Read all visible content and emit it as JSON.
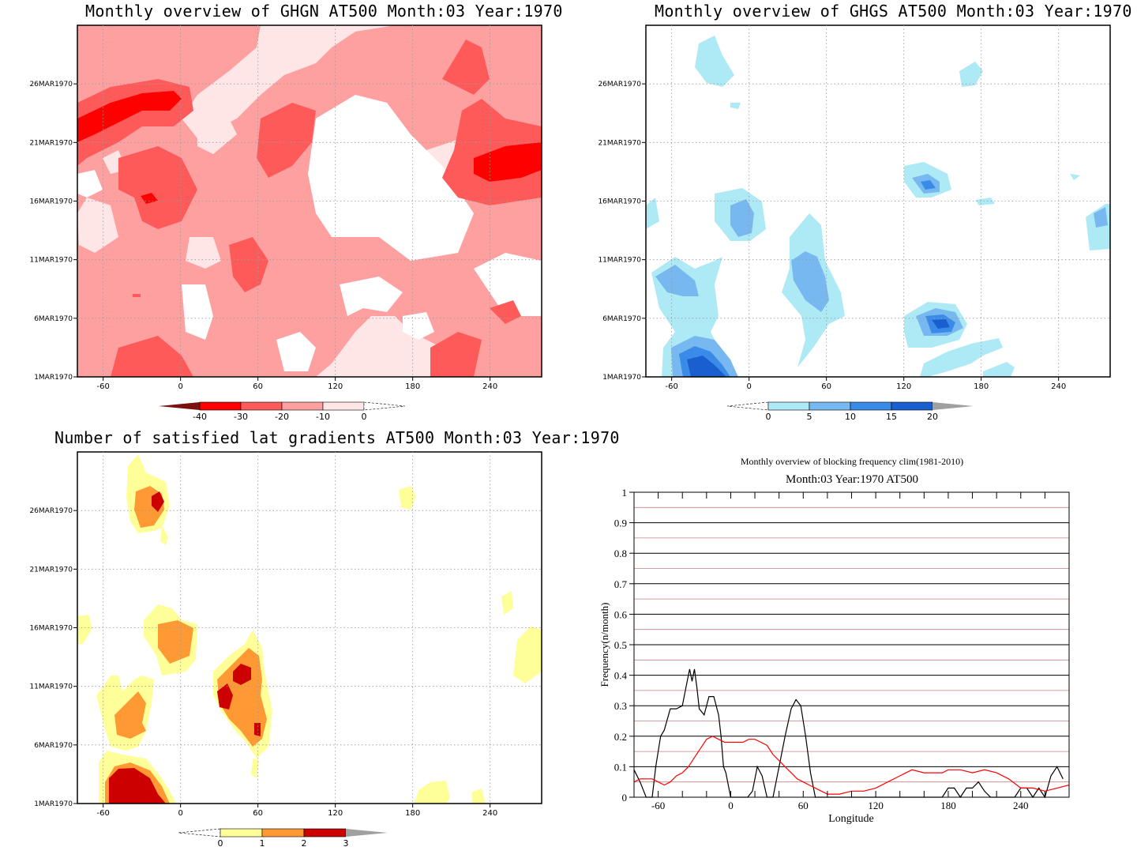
{
  "chart_data": [
    {
      "type": "heatmap",
      "title": "Monthly overview of GHGN AT500 Month:03 Year:1970",
      "x_ticks": [
        "-60",
        "0",
        "60",
        "120",
        "180",
        "240"
      ],
      "x_tick_values": [
        -60,
        0,
        60,
        120,
        180,
        240
      ],
      "xlim": [
        -80,
        280
      ],
      "y_ticks": [
        "1MAR1970",
        "6MAR1970",
        "11MAR1970",
        "16MAR1970",
        "21MAR1970",
        "26MAR1970"
      ],
      "y_tick_values": [
        1,
        6,
        11,
        16,
        21,
        26
      ],
      "ylim": [
        1,
        31
      ],
      "colorbar": {
        "labels": [
          "-40",
          "-30",
          "-20",
          "-10",
          "0"
        ],
        "colors": [
          "#7a1010",
          "#ff0000",
          "#ff5a5a",
          "#ffa0a0",
          "#ffe6e6"
        ]
      },
      "fill_colors": {
        "neutral": "#ffffff",
        "light": "#ffe6e6",
        "mid": "#ffa0a0",
        "strong": "#ff5a5a",
        "extreme": "#ff0000"
      }
    },
    {
      "type": "heatmap",
      "title": "Monthly overview of GHGS AT500 Month:03 Year:1970",
      "x_ticks": [
        "-60",
        "0",
        "60",
        "120",
        "180",
        "240"
      ],
      "x_tick_values": [
        -60,
        0,
        60,
        120,
        180,
        240
      ],
      "xlim": [
        -80,
        280
      ],
      "y_ticks": [
        "1MAR1970",
        "6MAR1970",
        "11MAR1970",
        "16MAR1970",
        "21MAR1970",
        "26MAR1970"
      ],
      "y_tick_values": [
        1,
        6,
        11,
        16,
        21,
        26
      ],
      "ylim": [
        1,
        31
      ],
      "colorbar": {
        "labels": [
          "0",
          "5",
          "10",
          "15",
          "20"
        ],
        "colors": [
          "#aeeaf5",
          "#78b8f0",
          "#3a8be8",
          "#1a5fd0",
          "#a0a0a0"
        ]
      },
      "fill_colors": {
        "light": "#aeeaf5",
        "mid": "#78b8f0",
        "strong": "#3a8be8",
        "extreme": "#1a5fd0"
      }
    },
    {
      "type": "heatmap",
      "title": "Number of satisfied lat gradients AT500 Month:03 Year:1970",
      "x_ticks": [
        "-60",
        "0",
        "60",
        "120",
        "180",
        "240"
      ],
      "x_tick_values": [
        -60,
        0,
        60,
        120,
        180,
        240
      ],
      "xlim": [
        -80,
        280
      ],
      "y_ticks": [
        "1MAR1970",
        "6MAR1970",
        "11MAR1970",
        "16MAR1970",
        "21MAR1970",
        "26MAR1970"
      ],
      "y_tick_values": [
        1,
        6,
        11,
        16,
        21,
        26
      ],
      "ylim": [
        1,
        31
      ],
      "colorbar": {
        "labels": [
          "0",
          "1",
          "2",
          "3"
        ],
        "colors": [
          "#ffff99",
          "#ff9933",
          "#cc0000",
          "#a0a0a0"
        ]
      },
      "fill_colors": {
        "one": "#ffff99",
        "two": "#ff9933",
        "three": "#cc0000"
      }
    },
    {
      "type": "line",
      "title": "Monthly overview of blocking frequency clim(1981-2010)",
      "subtitle": "Month:03 Year:1970  AT500",
      "xlabel": "Longitude",
      "ylabel": "Frequency(n/month)",
      "x_ticks": [
        "-60",
        "0",
        "60",
        "120",
        "180",
        "240"
      ],
      "x_tick_values": [
        -60,
        0,
        60,
        120,
        180,
        240
      ],
      "xlim": [
        -80,
        280
      ],
      "y_ticks": [
        "0",
        "0.1",
        "0.2",
        "0.3",
        "0.4",
        "0.5",
        "0.6",
        "0.7",
        "0.8",
        "0.9",
        "1"
      ],
      "ylim": [
        0,
        1
      ],
      "grid": true,
      "series": [
        {
          "color": "#000000",
          "x": [
            -80,
            -75,
            -70,
            -65,
            -62,
            -58,
            -55,
            -50,
            -45,
            -40,
            -36,
            -34,
            -32,
            -30,
            -28,
            -26,
            -22,
            -18,
            -14,
            -10,
            -8,
            -6,
            -4,
            0,
            5,
            10,
            14,
            18,
            22,
            26,
            30,
            35,
            40,
            45,
            50,
            54,
            58,
            62,
            66,
            70,
            80,
            100,
            120,
            140,
            160,
            170,
            175,
            180,
            185,
            190,
            195,
            200,
            205,
            210,
            215,
            220,
            225,
            235,
            240,
            245,
            250,
            255,
            260,
            265,
            270,
            275
          ],
          "y": [
            0.09,
            0.05,
            0.0,
            0.0,
            0.1,
            0.2,
            0.22,
            0.29,
            0.29,
            0.3,
            0.38,
            0.42,
            0.38,
            0.42,
            0.36,
            0.29,
            0.27,
            0.33,
            0.33,
            0.27,
            0.2,
            0.1,
            0.08,
            0.0,
            0.0,
            0.0,
            0.0,
            0.02,
            0.1,
            0.07,
            0.0,
            0.0,
            0.1,
            0.2,
            0.29,
            0.32,
            0.3,
            0.2,
            0.08,
            0.0,
            0.0,
            0.0,
            0.0,
            0.0,
            0.0,
            0.0,
            0.0,
            0.03,
            0.03,
            0.0,
            0.03,
            0.03,
            0.05,
            0.02,
            0.0,
            0.0,
            0.0,
            0.0,
            0.03,
            0.03,
            0.0,
            0.03,
            0.0,
            0.07,
            0.1,
            0.06
          ]
        },
        {
          "color": "#ff0000",
          "x": [
            -80,
            -75,
            -70,
            -65,
            -60,
            -55,
            -50,
            -45,
            -40,
            -35,
            -30,
            -25,
            -20,
            -15,
            -10,
            -5,
            0,
            5,
            10,
            15,
            20,
            25,
            30,
            35,
            40,
            45,
            50,
            55,
            60,
            65,
            70,
            75,
            80,
            90,
            100,
            110,
            120,
            130,
            140,
            150,
            160,
            170,
            175,
            180,
            190,
            200,
            210,
            220,
            230,
            240,
            250,
            260,
            270,
            280
          ],
          "y": [
            0.05,
            0.06,
            0.06,
            0.06,
            0.05,
            0.04,
            0.05,
            0.07,
            0.08,
            0.1,
            0.13,
            0.16,
            0.19,
            0.2,
            0.19,
            0.18,
            0.18,
            0.18,
            0.18,
            0.19,
            0.19,
            0.18,
            0.17,
            0.14,
            0.12,
            0.1,
            0.08,
            0.06,
            0.05,
            0.04,
            0.03,
            0.02,
            0.01,
            0.01,
            0.02,
            0.02,
            0.03,
            0.05,
            0.07,
            0.09,
            0.08,
            0.08,
            0.08,
            0.09,
            0.09,
            0.08,
            0.09,
            0.08,
            0.06,
            0.03,
            0.03,
            0.02,
            0.03,
            0.04
          ]
        }
      ]
    }
  ]
}
